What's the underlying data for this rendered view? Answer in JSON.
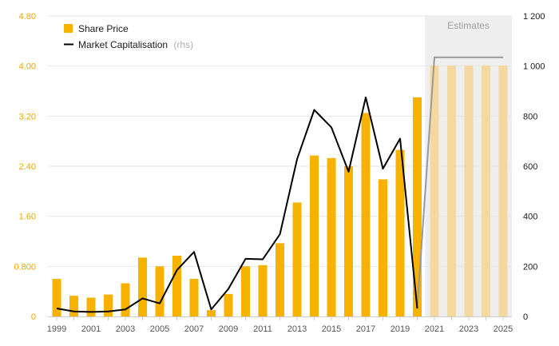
{
  "chart_data": {
    "type": "bar",
    "x": [
      1999,
      2000,
      2001,
      2002,
      2003,
      2004,
      2005,
      2006,
      2007,
      2008,
      2009,
      2010,
      2011,
      2012,
      2013,
      2014,
      2015,
      2016,
      2017,
      2018,
      2019,
      2020,
      2021,
      2022,
      2023,
      2024,
      2025
    ],
    "x_tick_labels": [
      "1999",
      "2001",
      "2003",
      "2005",
      "2007",
      "2009",
      "2011",
      "2013",
      "2015",
      "2017",
      "2019",
      "2021",
      "2023",
      "2025"
    ],
    "series": [
      {
        "name": "Share Price",
        "type": "bar",
        "axis": "left",
        "values": [
          0.6,
          0.33,
          0.3,
          0.35,
          0.53,
          0.94,
          0.8,
          0.97,
          0.6,
          0.1,
          0.36,
          0.8,
          0.82,
          1.17,
          1.82,
          2.57,
          2.53,
          2.4,
          3.25,
          2.19,
          2.66,
          3.5,
          4.01,
          4.01,
          4.01,
          4.01,
          4.01
        ],
        "estimate_from": 2021
      },
      {
        "name": "Market Capitalisation",
        "name_suffix": "(rhs)",
        "type": "line",
        "axis": "right",
        "values": [
          32,
          20,
          18,
          20,
          28,
          72,
          52,
          185,
          258,
          28,
          110,
          230,
          228,
          328,
          628,
          825,
          755,
          578,
          875,
          590,
          710,
          32,
          1035,
          1035,
          1035,
          1035,
          1035
        ],
        "estimate_from": 2020
      }
    ],
    "y_left": {
      "ylim": [
        0,
        4.8
      ],
      "tick_labels": [
        "0",
        "0.800",
        "1.60",
        "2.40",
        "3.20",
        "4.00",
        "4.80"
      ],
      "tick_values": [
        0,
        0.8,
        1.6,
        2.4,
        3.2,
        4.0,
        4.8
      ]
    },
    "y_right": {
      "ylim": [
        0,
        1200
      ],
      "tick_labels": [
        "0",
        "200",
        "400",
        "600",
        "800",
        "1 000",
        "1 200"
      ],
      "tick_values": [
        0,
        200,
        400,
        600,
        800,
        1000,
        1200
      ]
    },
    "estimates_label": "Estimates",
    "estimates_start": 2021,
    "grid": true,
    "legend_placement": "top-left",
    "colors": {
      "bar": "#f7b200",
      "bar_estimate": "#f3d9a0",
      "line": "#000000",
      "line_estimate": "#999999",
      "estimates_band": "#eeeeee",
      "grid": "#e6e6e6",
      "left_axis_text": "#f0a500"
    }
  }
}
